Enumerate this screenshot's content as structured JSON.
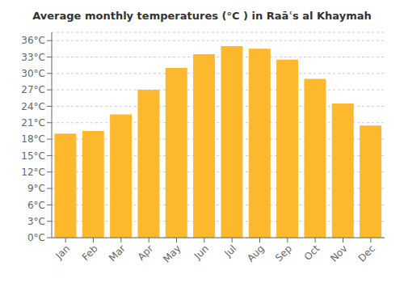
{
  "chart_data": {
    "type": "bar",
    "title": "Average monthly temperatures (°C ) in Raāʿs al Khaymah",
    "categories": [
      "Jan",
      "Feb",
      "Mar",
      "Apr",
      "May",
      "Jun",
      "Jul",
      "Aug",
      "Sep",
      "Oct",
      "Nov",
      "Dec"
    ],
    "values": [
      19.0,
      19.5,
      22.5,
      27.0,
      31.0,
      33.5,
      35.0,
      34.5,
      32.5,
      29.0,
      24.5,
      20.5
    ],
    "color": "#FDB92E",
    "ylim": [
      0,
      37.5
    ],
    "yticks": [
      {
        "value": 0,
        "label": "0°C"
      },
      {
        "value": 3,
        "label": "3°C"
      },
      {
        "value": 6,
        "label": "6°C"
      },
      {
        "value": 9,
        "label": "9°C"
      },
      {
        "value": 12,
        "label": "12°C"
      },
      {
        "value": 15,
        "label": "15°C"
      },
      {
        "value": 18,
        "label": "18°C"
      },
      {
        "value": 21,
        "label": "21°C"
      },
      {
        "value": 24,
        "label": "24°C"
      },
      {
        "value": 27,
        "label": "27°C"
      },
      {
        "value": 30,
        "label": "30°C"
      },
      {
        "value": 33,
        "label": "33°C"
      },
      {
        "value": 36,
        "label": "36°C"
      }
    ],
    "grid": true
  }
}
